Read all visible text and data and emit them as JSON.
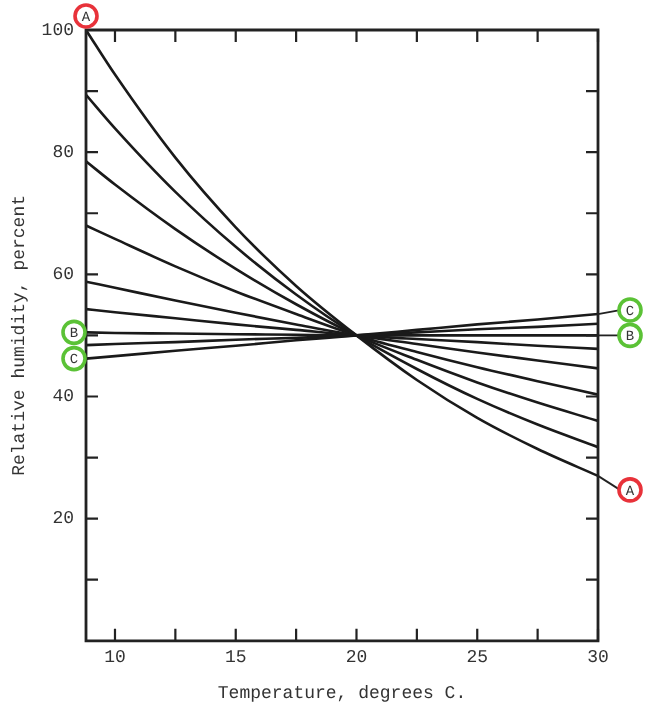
{
  "chart_data": {
    "type": "line",
    "xlabel": "Temperature, degrees C.",
    "ylabel": "Relative humidity, percent",
    "x": [
      8.8,
      10,
      12.5,
      15,
      17.5,
      20,
      22.5,
      25,
      27.5,
      30
    ],
    "xlim": [
      8.8,
      30
    ],
    "xticks": [
      10,
      {
        "value": 12.5,
        "label": null
      },
      15,
      {
        "value": 17.5,
        "label": null
      },
      20,
      {
        "value": 22.5,
        "label": null
      },
      25,
      {
        "value": 27.5,
        "label": null
      },
      30
    ],
    "ylim": [
      0,
      100
    ],
    "yticks": [
      {
        "value": 10,
        "label": null
      },
      20,
      {
        "value": 30,
        "label": null
      },
      40,
      {
        "value": 50,
        "label": null
      },
      60,
      {
        "value": 70,
        "label": null
      },
      80,
      {
        "value": 90,
        "label": null
      },
      100
    ],
    "grid": false,
    "legend": "right",
    "marker": "none",
    "line_style": "solid",
    "series": [
      {
        "name": "A",
        "color": "#1a1a1a",
        "values": [
          100,
          92.7,
          79.1,
          67.7,
          58.1,
          50,
          42.7,
          36.5,
          31.4,
          27
        ]
      },
      {
        "color": "#1a1a1a",
        "values": [
          89.4,
          83.9,
          73.5,
          64.5,
          56.7,
          50,
          44.5,
          39.6,
          35.4,
          31.7
        ]
      },
      {
        "color": "#1a1a1a",
        "values": [
          78.5,
          74.7,
          67.4,
          60.9,
          55.1,
          50,
          46.0,
          42.3,
          39.0,
          36
        ]
      },
      {
        "color": "#1a1a1a",
        "values": [
          68,
          65.8,
          61.3,
          57.2,
          53.5,
          50,
          47.3,
          44.8,
          42.5,
          40.3
        ]
      },
      {
        "color": "#1a1a1a",
        "values": [
          58.8,
          57.8,
          55.7,
          53.7,
          51.8,
          50,
          48.6,
          47.2,
          45.9,
          44.6
        ]
      },
      {
        "color": "#1a1a1a",
        "values": [
          54.3,
          53.8,
          52.8,
          51.8,
          50.9,
          50,
          49.4,
          48.9,
          48.3,
          47.8
        ]
      },
      {
        "name": "B",
        "color": "#1a1a1a",
        "values": [
          50.5,
          50.4,
          50.3,
          50.2,
          50.1,
          50,
          50,
          50,
          50,
          50
        ]
      },
      {
        "color": "#1a1a1a",
        "values": [
          48.4,
          48.6,
          48.9,
          49.3,
          49.6,
          50,
          50.5,
          51.0,
          51.4,
          51.9
        ]
      },
      {
        "name": "C",
        "color": "#1a1a1a",
        "values": [
          46.2,
          46.6,
          47.5,
          48.3,
          49.2,
          50,
          50.9,
          51.8,
          52.6,
          53.5
        ]
      }
    ]
  }
}
